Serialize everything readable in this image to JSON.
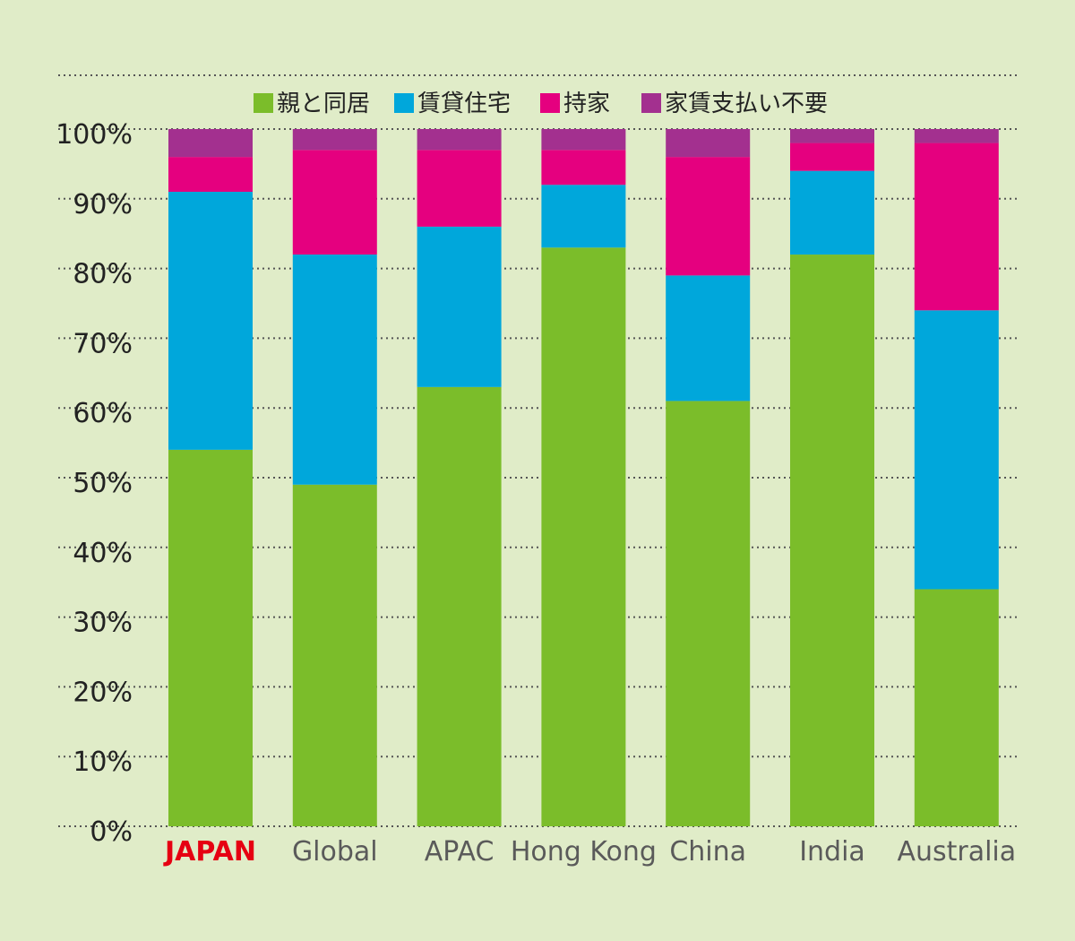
{
  "chart_data": {
    "type": "bar",
    "stacked": true,
    "title": "",
    "xlabel": "",
    "ylabel": "",
    "ylim": [
      0,
      100
    ],
    "yticks": [
      "0%",
      "10%",
      "20%",
      "30%",
      "40%",
      "50%",
      "60%",
      "70%",
      "80%",
      "90%",
      "100%"
    ],
    "grid": true,
    "legend_position": "top",
    "categories": [
      "JAPAN",
      "Global",
      "APAC",
      "Hong Kong",
      "China",
      "India",
      "Australia"
    ],
    "highlight_category": "JAPAN",
    "highlight_color": "#e60012",
    "series": [
      {
        "name": "親と同居",
        "color": "#7bbd2a",
        "values": [
          54,
          49,
          63,
          83,
          61,
          82,
          34
        ]
      },
      {
        "name": "賃貸住宅",
        "color": "#00a7db",
        "values": [
          37,
          33,
          23,
          9,
          18,
          12,
          40
        ]
      },
      {
        "name": "持家",
        "color": "#e5007f",
        "values": [
          5,
          15,
          11,
          5,
          17,
          4,
          24
        ]
      },
      {
        "name": "家賃支払い不要",
        "color": "#a3308f",
        "values": [
          4,
          3,
          3,
          3,
          4,
          2,
          2
        ]
      }
    ]
  }
}
